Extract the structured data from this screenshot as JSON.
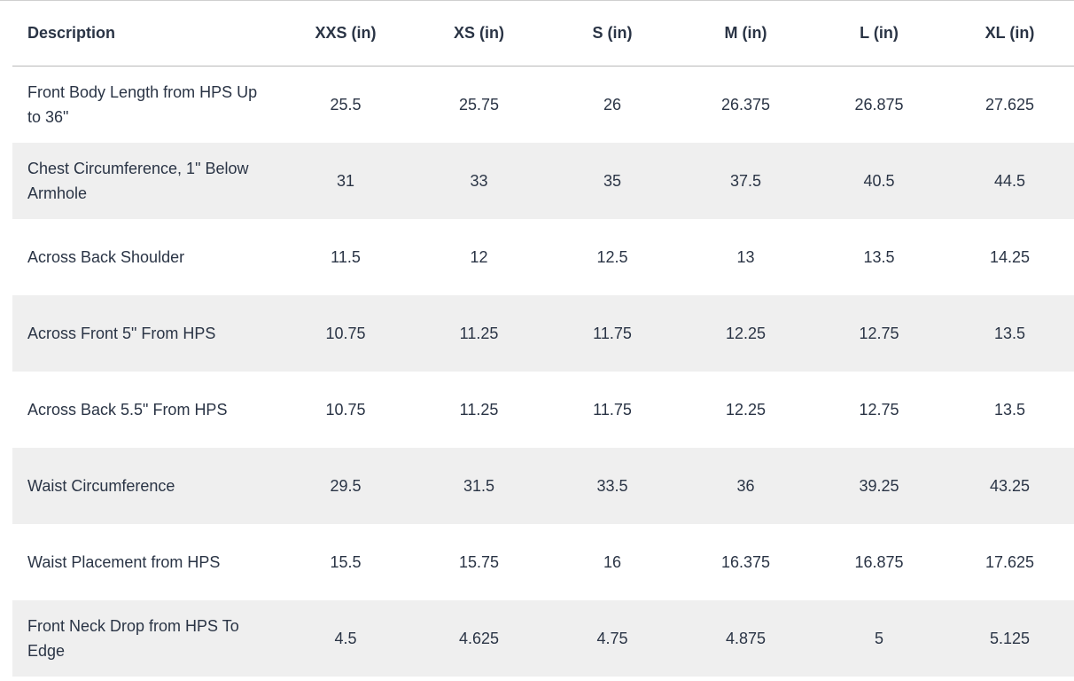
{
  "table": {
    "headers": [
      "Description",
      "XXS (in)",
      "XS (in)",
      "S (in)",
      "M (in)",
      "L (in)",
      "XL (in)"
    ],
    "rows": [
      {
        "label": "Front Body Length from HPS Up to 36\"",
        "values": [
          "25.5",
          "25.75",
          "26",
          "26.375",
          "26.875",
          "27.625"
        ]
      },
      {
        "label": "Chest Circumference, 1\" Below Armhole",
        "values": [
          "31",
          "33",
          "35",
          "37.5",
          "40.5",
          "44.5"
        ]
      },
      {
        "label": "Across Back Shoulder",
        "values": [
          "11.5",
          "12",
          "12.5",
          "13",
          "13.5",
          "14.25"
        ]
      },
      {
        "label": "Across Front 5\" From HPS",
        "values": [
          "10.75",
          "11.25",
          "11.75",
          "12.25",
          "12.75",
          "13.5"
        ]
      },
      {
        "label": "Across Back 5.5\" From HPS",
        "values": [
          "10.75",
          "11.25",
          "11.75",
          "12.25",
          "12.75",
          "13.5"
        ]
      },
      {
        "label": "Waist Circumference",
        "values": [
          "29.5",
          "31.5",
          "33.5",
          "36",
          "39.25",
          "43.25"
        ]
      },
      {
        "label": "Waist Placement from HPS",
        "values": [
          "15.5",
          "15.75",
          "16",
          "16.375",
          "16.875",
          "17.625"
        ]
      },
      {
        "label": "Front Neck Drop from HPS To Edge",
        "values": [
          "4.5",
          "4.625",
          "4.75",
          "4.875",
          "5",
          "5.125"
        ]
      }
    ]
  }
}
